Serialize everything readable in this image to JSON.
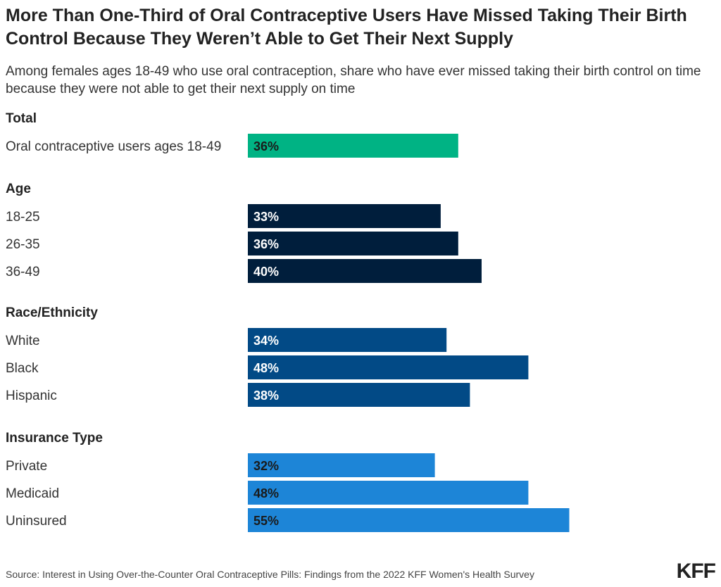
{
  "chart_data": {
    "type": "bar",
    "orientation": "horizontal",
    "title": "More Than One-Third of Oral Contraceptive Users Have Missed Taking Their Birth Control Because They Weren’t Able to Get Their Next Supply",
    "subtitle": "Among females ages 18-49 who use oral contraception, share who have ever missed taking their birth control on time because they were not able to get their next supply on time",
    "unit": "%",
    "xlim": [
      0,
      100
    ],
    "grid": false,
    "groups": [
      {
        "label": "Total",
        "color": "#00b384",
        "value_text_color": "#1a1a1a",
        "categories": [
          "Oral contraceptive users ages 18-49"
        ],
        "values": [
          36
        ]
      },
      {
        "label": "Age",
        "color": "#001e3c",
        "value_text_color": "#ffffff",
        "categories": [
          "18-25",
          "26-35",
          "36-49"
        ],
        "values": [
          33,
          36,
          40
        ]
      },
      {
        "label": "Race/Ethnicity",
        "color": "#024a86",
        "value_text_color": "#ffffff",
        "categories": [
          "White",
          "Black",
          "Hispanic"
        ],
        "values": [
          34,
          48,
          38
        ]
      },
      {
        "label": "Insurance Type",
        "color": "#1d85d7",
        "value_text_color": "#1a1a1a",
        "categories": [
          "Private",
          "Medicaid",
          "Uninsured"
        ],
        "values": [
          32,
          48,
          55
        ]
      }
    ]
  },
  "source": "Source: Interest in Using Over-the-Counter Oral Contraceptive Pills: Findings from the 2022 KFF Women's Health Survey",
  "logo_text": "KFF"
}
